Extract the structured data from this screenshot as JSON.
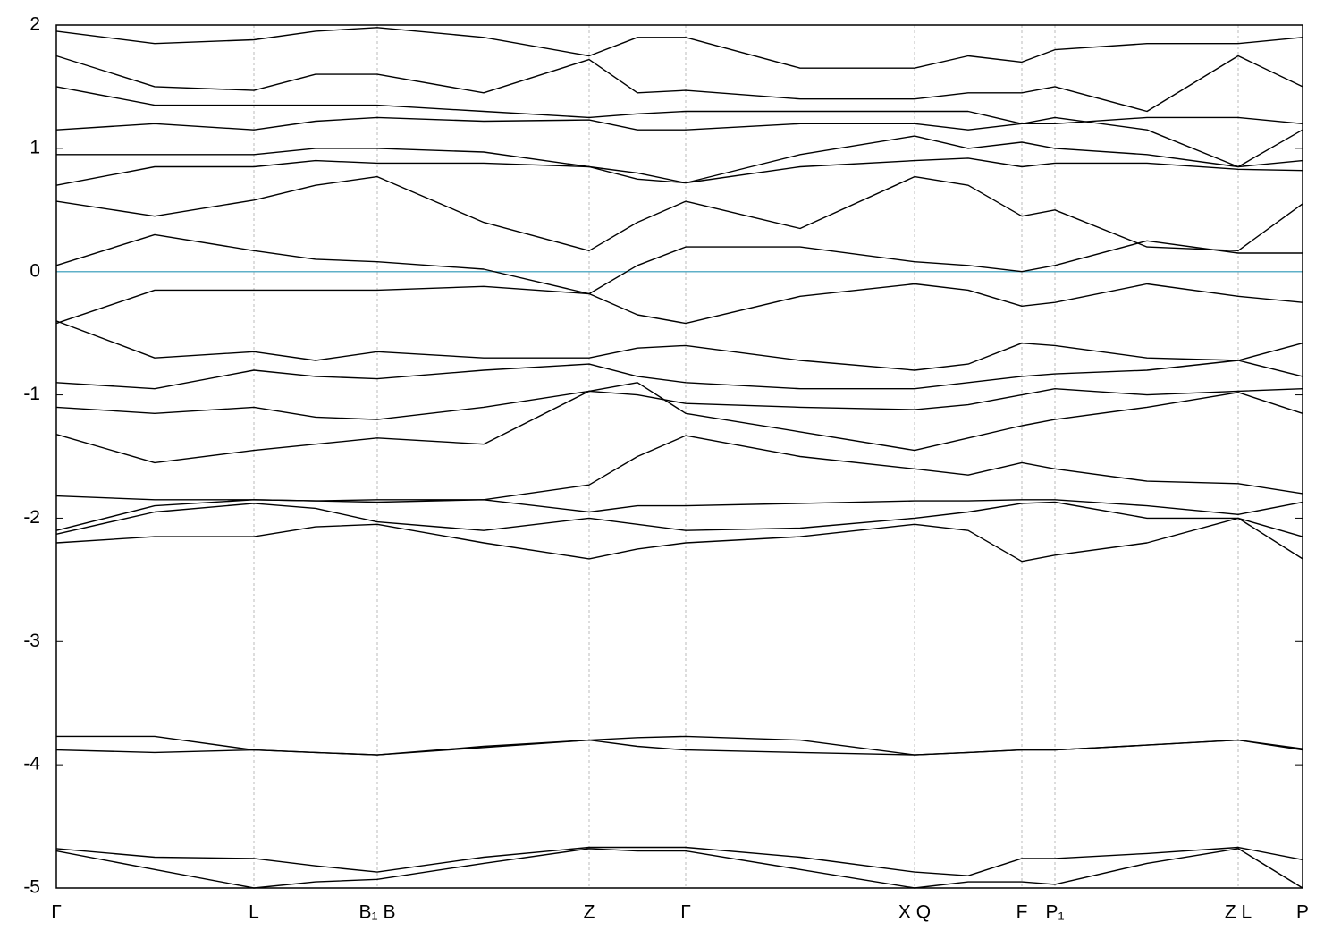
{
  "chart_data": {
    "type": "line",
    "xlim": [
      0,
      1394
    ],
    "ylim": [
      -5,
      2
    ],
    "yticks": [
      -5,
      -4,
      -3,
      -2,
      -1,
      0,
      1,
      2
    ],
    "xticks": [
      {
        "value": 0,
        "label": "Γ"
      },
      {
        "value": 221,
        "label": "L"
      },
      {
        "value": 359,
        "label": "B₁ B"
      },
      {
        "value": 596,
        "label": "Z"
      },
      {
        "value": 704,
        "label": "Γ"
      },
      {
        "value": 960,
        "label": "X Q"
      },
      {
        "value": 1080,
        "label": "F"
      },
      {
        "value": 1117,
        "label": "P₁"
      },
      {
        "value": 1322,
        "label": "Z L"
      },
      {
        "value": 1394,
        "label": "P"
      }
    ],
    "grid": true,
    "color": "#000000",
    "fermi_level": 0,
    "fermi_color": "#5fb0c8",
    "x": [
      0,
      110,
      221,
      290,
      359,
      478,
      596,
      650,
      704,
      832,
      960,
      1020,
      1080,
      1117,
      1220,
      1322,
      1394
    ],
    "series": [
      {
        "values": [
          -4.68,
          -4.75,
          -4.76,
          -4.82,
          -4.87,
          -4.75,
          -4.67,
          -4.67,
          -4.67,
          -4.75,
          -4.87,
          -4.9,
          -4.76,
          -4.76,
          -4.72,
          -4.67,
          -4.77
        ]
      },
      {
        "values": [
          -4.7,
          -4.85,
          -5.0,
          -4.95,
          -4.93,
          -4.8,
          -4.68,
          -4.7,
          -4.7,
          -4.85,
          -5.0,
          -4.95,
          -4.95,
          -4.97,
          -4.8,
          -4.68,
          -5.0
        ]
      },
      {
        "values": [
          -3.77,
          -3.77,
          -3.88,
          -3.9,
          -3.92,
          -3.85,
          -3.8,
          -3.78,
          -3.77,
          -3.8,
          -3.92,
          -3.9,
          -3.88,
          -3.88,
          -3.84,
          -3.8,
          -3.87
        ]
      },
      {
        "values": [
          -3.88,
          -3.9,
          -3.88,
          -3.9,
          -3.92,
          -3.86,
          -3.8,
          -3.85,
          -3.88,
          -3.9,
          -3.92,
          -3.9,
          -3.88,
          -3.88,
          -3.84,
          -3.8,
          -3.88
        ]
      },
      {
        "values": [
          -2.2,
          -2.15,
          -2.15,
          -2.07,
          -2.05,
          -2.2,
          -2.33,
          -2.25,
          -2.2,
          -2.15,
          -2.05,
          -2.1,
          -2.35,
          -2.3,
          -2.2,
          -2.0,
          -2.33
        ]
      },
      {
        "values": [
          -2.13,
          -1.95,
          -1.88,
          -1.92,
          -2.03,
          -2.1,
          -2.0,
          -2.05,
          -2.1,
          -2.08,
          -2.0,
          -1.95,
          -1.88,
          -1.87,
          -2.0,
          -2.0,
          -2.15
        ]
      },
      {
        "values": [
          -2.1,
          -1.9,
          -1.85,
          -1.86,
          -1.87,
          -1.85,
          -1.95,
          -1.9,
          -1.9,
          -1.88,
          -1.86,
          -1.86,
          -1.85,
          -1.85,
          -1.9,
          -1.97,
          -1.87
        ]
      },
      {
        "values": [
          -1.82,
          -1.85,
          -1.85,
          -1.86,
          -1.85,
          -1.85,
          -1.73,
          -1.5,
          -1.33,
          -1.5,
          -1.6,
          -1.65,
          -1.55,
          -1.6,
          -1.7,
          -1.72,
          -1.8
        ]
      },
      {
        "values": [
          -1.32,
          -1.55,
          -1.45,
          -1.4,
          -1.35,
          -1.4,
          -0.97,
          -0.9,
          -1.15,
          -1.3,
          -1.45,
          -1.35,
          -1.25,
          -1.2,
          -1.1,
          -0.98,
          -1.15
        ]
      },
      {
        "values": [
          -1.1,
          -1.15,
          -1.1,
          -1.18,
          -1.2,
          -1.1,
          -0.97,
          -1.0,
          -1.07,
          -1.1,
          -1.12,
          -1.08,
          -1.0,
          -0.95,
          -1.0,
          -0.97,
          -0.95
        ]
      },
      {
        "values": [
          -0.9,
          -0.95,
          -0.8,
          -0.85,
          -0.87,
          -0.8,
          -0.75,
          -0.85,
          -0.9,
          -0.95,
          -0.95,
          -0.9,
          -0.85,
          -0.83,
          -0.8,
          -0.72,
          -0.85
        ]
      },
      {
        "values": [
          -0.4,
          -0.7,
          -0.65,
          -0.72,
          -0.65,
          -0.7,
          -0.7,
          -0.62,
          -0.6,
          -0.72,
          -0.8,
          -0.75,
          -0.58,
          -0.6,
          -0.7,
          -0.72,
          -0.58
        ]
      },
      {
        "values": [
          -0.42,
          -0.15,
          -0.15,
          -0.15,
          -0.15,
          -0.12,
          -0.18,
          -0.35,
          -0.42,
          -0.2,
          -0.1,
          -0.15,
          -0.28,
          -0.25,
          -0.1,
          -0.2,
          -0.25
        ]
      },
      {
        "values": [
          0.05,
          0.3,
          0.17,
          0.1,
          0.08,
          0.02,
          -0.18,
          0.05,
          0.2,
          0.2,
          0.08,
          0.05,
          0.0,
          0.05,
          0.25,
          0.15,
          0.15
        ]
      },
      {
        "values": [
          0.57,
          0.45,
          0.58,
          0.7,
          0.77,
          0.4,
          0.17,
          0.4,
          0.57,
          0.35,
          0.77,
          0.7,
          0.45,
          0.5,
          0.2,
          0.17,
          0.55
        ]
      },
      {
        "values": [
          0.7,
          0.85,
          0.85,
          0.9,
          0.88,
          0.88,
          0.85,
          0.75,
          0.72,
          0.85,
          0.9,
          0.92,
          0.85,
          0.88,
          0.88,
          0.83,
          0.82
        ]
      },
      {
        "values": [
          0.95,
          0.95,
          0.95,
          1.0,
          1.0,
          0.97,
          0.85,
          0.8,
          0.72,
          0.95,
          1.1,
          1.0,
          1.05,
          1.0,
          0.95,
          0.85,
          0.9
        ]
      },
      {
        "values": [
          1.15,
          1.2,
          1.15,
          1.22,
          1.25,
          1.22,
          1.23,
          1.15,
          1.15,
          1.2,
          1.2,
          1.15,
          1.2,
          1.25,
          1.15,
          0.85,
          1.15
        ]
      },
      {
        "values": [
          1.5,
          1.35,
          1.35,
          1.35,
          1.35,
          1.3,
          1.25,
          1.28,
          1.3,
          1.3,
          1.3,
          1.3,
          1.2,
          1.2,
          1.25,
          1.25,
          1.2
        ]
      },
      {
        "values": [
          1.75,
          1.5,
          1.47,
          1.6,
          1.6,
          1.45,
          1.72,
          1.45,
          1.47,
          1.4,
          1.4,
          1.45,
          1.45,
          1.5,
          1.3,
          1.75,
          1.5
        ]
      },
      {
        "values": [
          1.95,
          1.85,
          1.88,
          1.95,
          1.98,
          1.9,
          1.75,
          1.9,
          1.9,
          1.65,
          1.65,
          1.75,
          1.7,
          1.8,
          1.85,
          1.85,
          1.9
        ]
      }
    ]
  }
}
